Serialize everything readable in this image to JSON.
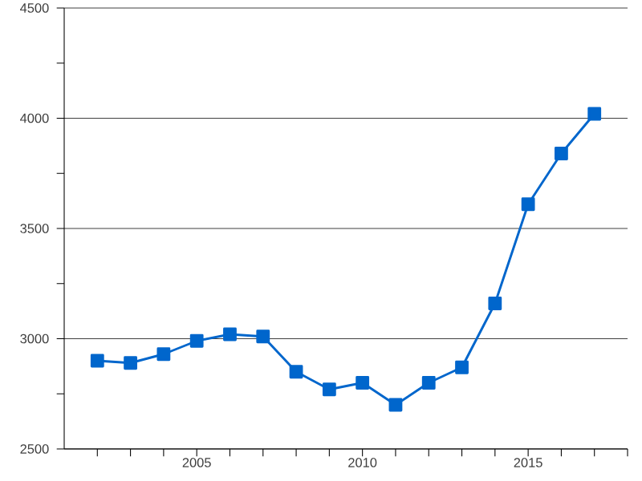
{
  "chart_data": {
    "type": "line",
    "x": [
      2002,
      2003,
      2004,
      2005,
      2006,
      2007,
      2008,
      2009,
      2010,
      2011,
      2012,
      2013,
      2014,
      2015,
      2016,
      2017
    ],
    "series": [
      {
        "color": "#0066cc",
        "values": [
          2900,
          2890,
          2930,
          2990,
          3020,
          3010,
          2850,
          2770,
          2800,
          2700,
          2800,
          2870,
          3160,
          3610,
          3840,
          4020
        ]
      }
    ],
    "xlim": [
      2001,
      2018
    ],
    "xticks": [
      {
        "value": 2002,
        "label": null
      },
      {
        "value": 2003,
        "label": null
      },
      {
        "value": 2004,
        "label": null
      },
      2005,
      {
        "value": 2006,
        "label": null
      },
      {
        "value": 2007,
        "label": null
      },
      {
        "value": 2008,
        "label": null
      },
      {
        "value": 2009,
        "label": null
      },
      2010,
      {
        "value": 2011,
        "label": null
      },
      {
        "value": 2012,
        "label": null
      },
      {
        "value": 2013,
        "label": null
      },
      {
        "value": 2014,
        "label": null
      },
      2015,
      {
        "value": 2016,
        "label": null
      },
      {
        "value": 2017,
        "label": null
      },
      {
        "value": 2018,
        "label": null
      }
    ],
    "ylim": [
      2500,
      4500
    ],
    "yticks": [
      2500,
      {
        "value": 2750,
        "label": null
      },
      3000,
      {
        "value": 3250,
        "label": null
      },
      3500,
      {
        "value": 3750,
        "label": null
      },
      4000,
      {
        "value": 4250,
        "label": null
      },
      4500
    ],
    "grid": "y",
    "marker": "square",
    "line_style": "solid"
  }
}
